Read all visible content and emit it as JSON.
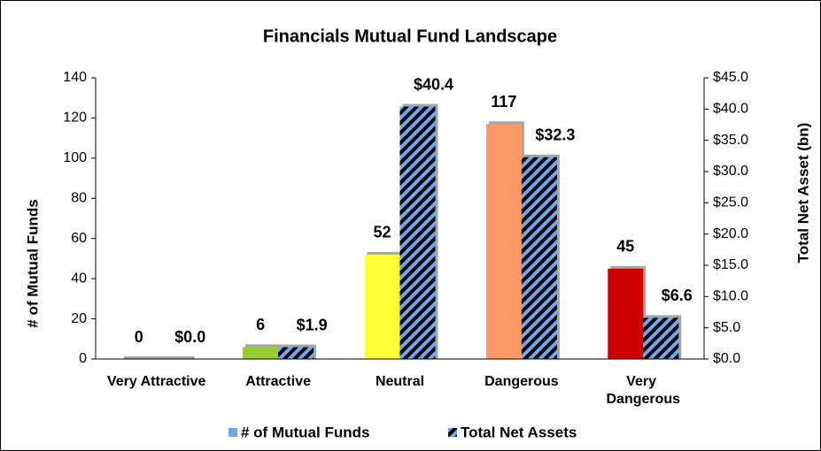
{
  "chart_data": {
    "type": "bar",
    "title": "Financials Mutual Fund Landscape",
    "categories": [
      "Very Attractive",
      "Attractive",
      "Neutral",
      "Dangerous",
      "Very Dangerous"
    ],
    "series": [
      {
        "name": "# of Mutual Funds",
        "color": "#6fa8f0",
        "colors": [
          "#bfbfbf",
          "#99cc33",
          "#ffff33",
          "#ff9966",
          "#cc0000"
        ],
        "values": [
          0,
          6,
          52,
          117,
          45
        ]
      },
      {
        "name": "Total Net Assets",
        "color": "#6fa8f0",
        "hatch": "#000000",
        "axis": "y2",
        "values": [
          0,
          1.9,
          40.4,
          32.3,
          6.6
        ],
        "value_labels": [
          "$0.0",
          "$1.9",
          "$40.4",
          "$32.3",
          "$6.6"
        ]
      }
    ],
    "ylabel": "# of Mutual Funds",
    "y2label": "Total Net Asset (bn)",
    "ylim": [
      0,
      140
    ],
    "yticks": [
      0,
      20,
      40,
      60,
      80,
      100,
      120,
      140
    ],
    "y2lim": [
      0,
      45
    ],
    "y2ticks": [
      {
        "value": 0,
        "label": "$0.0"
      },
      {
        "value": 5,
        "label": "$5.0"
      },
      {
        "value": 10,
        "label": "$10.0"
      },
      {
        "value": 15,
        "label": "$15.0"
      },
      {
        "value": 20,
        "label": "$20.0"
      },
      {
        "value": 25,
        "label": "$25.0"
      },
      {
        "value": 30,
        "label": "$30.0"
      },
      {
        "value": 35,
        "label": "$35.0"
      },
      {
        "value": 40,
        "label": "$40.0"
      },
      {
        "value": 45,
        "label": "$45.0"
      }
    ],
    "legend": "bottom"
  }
}
